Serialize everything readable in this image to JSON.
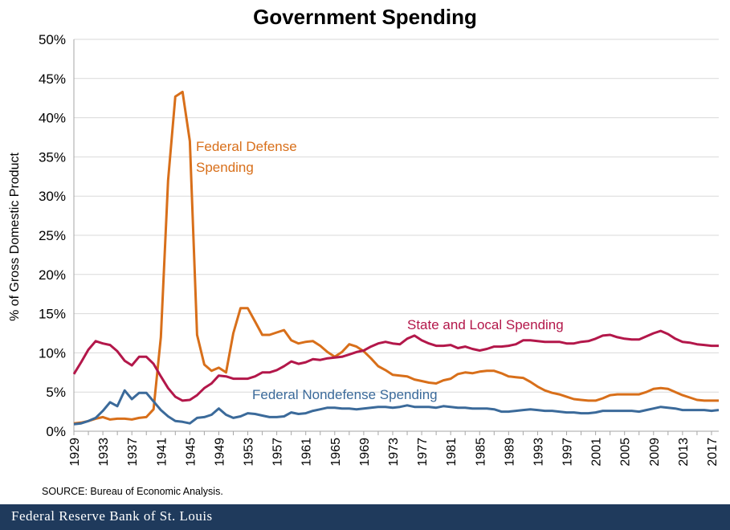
{
  "title": "Government Spending",
  "source": "SOURCE: Bureau of Economic Analysis.",
  "footer": "Federal Reserve Bank of St. Louis",
  "chart_data": {
    "type": "line",
    "title": "Government Spending",
    "ylabel": "% of Gross Domestic Product",
    "xlabel": "",
    "ylim": [
      0,
      50
    ],
    "xlim": [
      1929,
      2018
    ],
    "ytick_labels": [
      "0%",
      "5%",
      "10%",
      "15%",
      "20%",
      "25%",
      "30%",
      "35%",
      "40%",
      "45%",
      "50%"
    ],
    "xtick_labels": [
      "1929",
      "1933",
      "1937",
      "1941",
      "1945",
      "1949",
      "1953",
      "1957",
      "1961",
      "1965",
      "1969",
      "1973",
      "1977",
      "1981",
      "1985",
      "1989",
      "1993",
      "1997",
      "2001",
      "2005",
      "2009",
      "2013",
      "2017"
    ],
    "grid": "horizontal",
    "x": [
      1929,
      1930,
      1931,
      1932,
      1933,
      1934,
      1935,
      1936,
      1937,
      1938,
      1939,
      1940,
      1941,
      1942,
      1943,
      1944,
      1945,
      1946,
      1947,
      1948,
      1949,
      1950,
      1951,
      1952,
      1953,
      1954,
      1955,
      1956,
      1957,
      1958,
      1959,
      1960,
      1961,
      1962,
      1963,
      1964,
      1965,
      1966,
      1967,
      1968,
      1969,
      1970,
      1971,
      1972,
      1973,
      1974,
      1975,
      1976,
      1977,
      1978,
      1979,
      1980,
      1981,
      1982,
      1983,
      1984,
      1985,
      1986,
      1987,
      1988,
      1989,
      1990,
      1991,
      1992,
      1993,
      1994,
      1995,
      1996,
      1997,
      1998,
      1999,
      2000,
      2001,
      2002,
      2003,
      2004,
      2005,
      2006,
      2007,
      2008,
      2009,
      2010,
      2011,
      2012,
      2013,
      2014,
      2015,
      2016,
      2017,
      2018
    ],
    "series": [
      {
        "name": "Federal Defense Spending",
        "color": "#d86f1a",
        "values": [
          1.0,
          1.1,
          1.3,
          1.6,
          1.8,
          1.5,
          1.6,
          1.6,
          1.5,
          1.7,
          1.8,
          2.8,
          12.0,
          32.0,
          42.7,
          43.3,
          37.0,
          12.3,
          8.5,
          7.7,
          8.1,
          7.5,
          12.5,
          15.7,
          15.7,
          14.0,
          12.3,
          12.3,
          12.6,
          12.9,
          11.6,
          11.2,
          11.4,
          11.5,
          10.9,
          10.1,
          9.5,
          10.1,
          11.1,
          10.8,
          10.2,
          9.3,
          8.3,
          7.8,
          7.2,
          7.1,
          7.0,
          6.6,
          6.4,
          6.2,
          6.1,
          6.5,
          6.7,
          7.3,
          7.5,
          7.4,
          7.6,
          7.7,
          7.7,
          7.4,
          7.0,
          6.9,
          6.8,
          6.3,
          5.7,
          5.2,
          4.9,
          4.7,
          4.4,
          4.1,
          4.0,
          3.9,
          3.9,
          4.2,
          4.6,
          4.7,
          4.7,
          4.7,
          4.7,
          5.0,
          5.4,
          5.5,
          5.4,
          5.0,
          4.6,
          4.3,
          4.0,
          3.9,
          3.9,
          3.9
        ]
      },
      {
        "name": "State and Local Spending",
        "color": "#b3174a",
        "values": [
          7.3,
          8.8,
          10.4,
          11.5,
          11.2,
          11.0,
          10.2,
          9.0,
          8.4,
          9.5,
          9.5,
          8.6,
          7.0,
          5.5,
          4.4,
          3.9,
          4.0,
          4.6,
          5.5,
          6.1,
          7.1,
          7.0,
          6.7,
          6.7,
          6.7,
          7.0,
          7.5,
          7.5,
          7.8,
          8.3,
          8.9,
          8.6,
          8.8,
          9.2,
          9.1,
          9.3,
          9.4,
          9.5,
          9.8,
          10.1,
          10.3,
          10.8,
          11.2,
          11.4,
          11.2,
          11.1,
          11.8,
          12.2,
          11.6,
          11.2,
          10.9,
          10.9,
          11.0,
          10.6,
          10.8,
          10.5,
          10.3,
          10.5,
          10.8,
          10.8,
          10.9,
          11.1,
          11.6,
          11.6,
          11.5,
          11.4,
          11.4,
          11.4,
          11.2,
          11.2,
          11.4,
          11.5,
          11.8,
          12.2,
          12.3,
          12.0,
          11.8,
          11.7,
          11.7,
          12.1,
          12.5,
          12.8,
          12.4,
          11.8,
          11.4,
          11.3,
          11.1,
          11.0,
          10.9,
          10.9
        ]
      },
      {
        "name": "Federal Nondefense Spending",
        "color": "#3b6a9a",
        "values": [
          0.9,
          1.0,
          1.3,
          1.7,
          2.6,
          3.7,
          3.2,
          5.2,
          4.1,
          4.9,
          4.9,
          3.8,
          2.7,
          1.9,
          1.3,
          1.2,
          1.0,
          1.7,
          1.8,
          2.1,
          2.9,
          2.1,
          1.7,
          1.9,
          2.3,
          2.2,
          2.0,
          1.8,
          1.8,
          1.9,
          2.4,
          2.2,
          2.3,
          2.6,
          2.8,
          3.0,
          3.0,
          2.9,
          2.9,
          2.8,
          2.9,
          3.0,
          3.1,
          3.1,
          3.0,
          3.1,
          3.3,
          3.1,
          3.1,
          3.1,
          3.0,
          3.2,
          3.1,
          3.0,
          3.0,
          2.9,
          2.9,
          2.9,
          2.8,
          2.5,
          2.5,
          2.6,
          2.7,
          2.8,
          2.7,
          2.6,
          2.6,
          2.5,
          2.4,
          2.4,
          2.3,
          2.3,
          2.4,
          2.6,
          2.6,
          2.6,
          2.6,
          2.6,
          2.5,
          2.7,
          2.9,
          3.1,
          3.0,
          2.9,
          2.7,
          2.7,
          2.7,
          2.7,
          2.6,
          2.7
        ]
      }
    ],
    "annotations": [
      {
        "series": 0,
        "lines": [
          "Federal Defense",
          "Spending"
        ]
      },
      {
        "series": 1,
        "lines": [
          "State and Local Spending"
        ]
      },
      {
        "series": 2,
        "lines": [
          "Federal Nondefense Spending"
        ]
      }
    ]
  }
}
